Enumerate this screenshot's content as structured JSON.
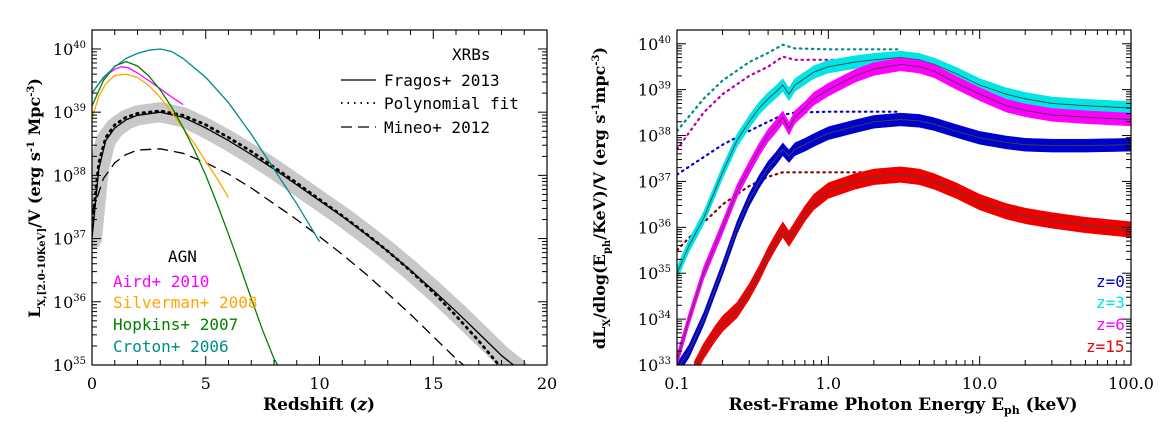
{
  "chart_data": [
    {
      "type": "line",
      "xlabel": "Redshift (z)",
      "ylabel": "L_X,[2.0-10KeV]/V (erg s^-1 Mpc^-3)",
      "xlim": [
        0,
        20
      ],
      "ylim_log10": [
        35,
        40.3
      ],
      "y_scale": "log",
      "x_ticks": [
        "0",
        "5",
        "10",
        "15",
        "20"
      ],
      "y_ticks": [
        "10^35",
        "10^36",
        "10^37",
        "10^38",
        "10^39",
        "10^40"
      ],
      "legend_xrb": {
        "title": "XRBs",
        "entries": [
          "Fragos+ 2013",
          "Polynomial fit",
          "Mineo+ 2012"
        ]
      },
      "legend_agn": {
        "title": "AGN",
        "entries": [
          "Aird+ 2010",
          "Silverman+ 2008",
          "Hopkins+ 2007",
          "Croton+ 2006"
        ]
      },
      "series": [
        {
          "name": "Fragos+ 2013",
          "color": "#000000",
          "style": "solid",
          "band_color": "#c8c8c8",
          "x": [
            0,
            0.3,
            0.6,
            1,
            1.5,
            2,
            3,
            4,
            5,
            6,
            7,
            8,
            9,
            10,
            11,
            12,
            13,
            14,
            15,
            16,
            17,
            18,
            18.7,
            19
          ],
          "log_y": [
            37.0,
            38.1,
            38.55,
            38.75,
            38.88,
            38.95,
            39.0,
            38.92,
            38.75,
            38.55,
            38.33,
            38.1,
            37.85,
            37.6,
            37.35,
            37.08,
            36.8,
            36.5,
            36.18,
            35.85,
            35.5,
            35.15,
            34.95,
            34.8
          ]
        },
        {
          "name": "Polynomial fit",
          "color": "#000000",
          "style": "dotted",
          "x": [
            0,
            0.3,
            0.6,
            1,
            1.5,
            2,
            3,
            4,
            5,
            6,
            7,
            8,
            9,
            10,
            11,
            12,
            13,
            14,
            15,
            16,
            17,
            18
          ],
          "log_y": [
            37.2,
            38.2,
            38.6,
            38.8,
            38.92,
            38.98,
            39.02,
            38.95,
            38.8,
            38.6,
            38.38,
            38.13,
            37.88,
            37.62,
            37.36,
            37.09,
            36.8,
            36.49,
            36.15,
            35.78,
            35.38,
            34.95
          ]
        },
        {
          "name": "Mineo+ 2012",
          "color": "#000000",
          "style": "dashed",
          "x": [
            0,
            0.5,
            1,
            1.5,
            2,
            3,
            4,
            5,
            6,
            7,
            8,
            9,
            10,
            11,
            12,
            13,
            14,
            15,
            16,
            17,
            17.6
          ],
          "log_y": [
            37.4,
            37.95,
            38.2,
            38.33,
            38.4,
            38.42,
            38.35,
            38.2,
            38.02,
            37.8,
            37.55,
            37.3,
            37.03,
            36.75,
            36.45,
            36.13,
            35.8,
            35.45,
            35.1,
            34.8,
            34.7
          ]
        },
        {
          "name": "Aird+ 2010",
          "color": "#ff00ff",
          "style": "solid",
          "x": [
            0,
            0.3,
            0.6,
            1,
            1.3,
            1.6,
            2,
            2.5,
            3,
            3.5,
            4
          ],
          "log_y": [
            39.3,
            39.45,
            39.58,
            39.68,
            39.72,
            39.7,
            39.62,
            39.5,
            39.37,
            39.24,
            39.12
          ]
        },
        {
          "name": "Silverman+ 2008",
          "color": "#ffa500",
          "style": "solid",
          "x": [
            0,
            0.3,
            0.6,
            1,
            1.5,
            2,
            2.5,
            3,
            3.5,
            4,
            4.5,
            5,
            5.5,
            6
          ],
          "log_y": [
            38.9,
            39.25,
            39.45,
            39.58,
            39.6,
            39.55,
            39.42,
            39.23,
            39.0,
            38.75,
            38.5,
            38.22,
            37.95,
            37.65
          ]
        },
        {
          "name": "Hopkins+ 2007",
          "color": "#008000",
          "style": "solid",
          "x": [
            0,
            0.5,
            1,
            1.5,
            2,
            2.5,
            3,
            3.5,
            4,
            4.5,
            5,
            5.5,
            6,
            6.5,
            7,
            7.5,
            8,
            8.5,
            9,
            9.5
          ],
          "log_y": [
            39.1,
            39.5,
            39.73,
            39.8,
            39.73,
            39.57,
            39.35,
            39.08,
            38.76,
            38.4,
            38.0,
            37.55,
            37.07,
            36.57,
            36.05,
            35.55,
            35.1,
            34.78,
            34.6,
            34.5
          ]
        },
        {
          "name": "Croton+ 2006",
          "color": "#008b8b",
          "style": "solid",
          "x": [
            0,
            0.5,
            1,
            1.5,
            2,
            2.5,
            3,
            3.5,
            4,
            5,
            6,
            7,
            8,
            9,
            10
          ],
          "log_y": [
            39.3,
            39.55,
            39.72,
            39.85,
            39.93,
            39.98,
            40.0,
            39.96,
            39.85,
            39.55,
            39.15,
            38.65,
            38.1,
            37.55,
            36.95
          ]
        }
      ]
    },
    {
      "type": "line",
      "xlabel": "Rest-Frame Photon Energy E_ph (keV)",
      "ylabel": "dL_X/dlog(E_ph/KeV)/V (erg s^-1 mpc^-3)",
      "x_scale": "log",
      "xlim": [
        0.1,
        100
      ],
      "ylim_log10": [
        33,
        40.3
      ],
      "y_scale": "log",
      "x_ticks": [
        "0.1",
        "1.0",
        "10.0",
        "100.0"
      ],
      "y_ticks": [
        "10^33",
        "10^34",
        "10^35",
        "10^36",
        "10^37",
        "10^38",
        "10^39",
        "10^40"
      ],
      "legend": [
        "z=0",
        "z=3",
        "z=6",
        "z=15"
      ],
      "series": [
        {
          "name": "z=0",
          "color": "#0000cd",
          "half_width": 0.14,
          "x": [
            0.1,
            0.12,
            0.15,
            0.2,
            0.25,
            0.3,
            0.35,
            0.4,
            0.45,
            0.5,
            0.55,
            0.6,
            0.7,
            0.8,
            1,
            1.5,
            2,
            3,
            4,
            5,
            7,
            10,
            15,
            20,
            30,
            50,
            100
          ],
          "log_y": [
            32.9,
            33.3,
            34.0,
            35.1,
            36.0,
            36.6,
            37.0,
            37.3,
            37.5,
            37.7,
            37.55,
            37.7,
            37.8,
            37.9,
            38.05,
            38.2,
            38.3,
            38.35,
            38.32,
            38.25,
            38.1,
            37.95,
            37.85,
            37.8,
            37.78,
            37.78,
            37.8
          ]
        },
        {
          "name": "z=3",
          "color": "#00e5e5",
          "half_width": 0.14,
          "x": [
            0.1,
            0.12,
            0.15,
            0.2,
            0.25,
            0.3,
            0.35,
            0.4,
            0.45,
            0.5,
            0.55,
            0.6,
            0.7,
            0.8,
            1,
            1.5,
            2,
            3,
            4,
            5,
            7,
            10,
            15,
            20,
            30,
            50,
            100
          ],
          "log_y": [
            35.0,
            35.6,
            36.2,
            37.2,
            37.9,
            38.3,
            38.6,
            38.8,
            38.95,
            39.1,
            38.9,
            39.1,
            39.25,
            39.38,
            39.5,
            39.6,
            39.65,
            39.7,
            39.65,
            39.55,
            39.35,
            39.1,
            38.9,
            38.8,
            38.7,
            38.65,
            38.6
          ]
        },
        {
          "name": "z=6",
          "color": "#ff00ff",
          "half_width": 0.14,
          "x": [
            0.1,
            0.12,
            0.15,
            0.2,
            0.25,
            0.3,
            0.35,
            0.4,
            0.45,
            0.5,
            0.55,
            0.6,
            0.7,
            0.8,
            1,
            1.5,
            2,
            3,
            4,
            5,
            7,
            10,
            15,
            20,
            30,
            50,
            100
          ],
          "log_y": [
            33.1,
            34.0,
            35.0,
            36.0,
            36.8,
            37.3,
            37.7,
            38.0,
            38.2,
            38.4,
            38.15,
            38.4,
            38.6,
            38.8,
            39.0,
            39.3,
            39.45,
            39.55,
            39.5,
            39.4,
            39.15,
            38.9,
            38.65,
            38.55,
            38.45,
            38.4,
            38.35
          ]
        },
        {
          "name": "z=15",
          "color": "#ee0000",
          "half_width": 0.17,
          "x": [
            0.13,
            0.15,
            0.18,
            0.2,
            0.25,
            0.3,
            0.35,
            0.4,
            0.45,
            0.5,
            0.55,
            0.6,
            0.7,
            0.8,
            1,
            1.5,
            2,
            3,
            4,
            5,
            7,
            10,
            15,
            20,
            30,
            50,
            100
          ],
          "log_y": [
            32.9,
            33.3,
            33.7,
            33.9,
            34.2,
            34.6,
            35.0,
            35.4,
            35.7,
            35.95,
            35.75,
            35.95,
            36.3,
            36.55,
            36.8,
            37.0,
            37.1,
            37.15,
            37.1,
            37.0,
            36.8,
            36.55,
            36.35,
            36.25,
            36.15,
            36.05,
            35.95
          ]
        },
        {
          "name": "z=0 dotted",
          "color": "#0000cd",
          "style": "dotted",
          "x": [
            0.1,
            0.2,
            0.3,
            0.4,
            0.5,
            0.6,
            1,
            2,
            3
          ],
          "log_y": [
            37.15,
            37.8,
            38.1,
            38.3,
            38.45,
            38.5,
            38.52,
            38.52,
            38.52
          ]
        },
        {
          "name": "z=3 dotted",
          "color": "#008b8b",
          "style": "dotted",
          "x": [
            0.1,
            0.15,
            0.2,
            0.3,
            0.4,
            0.5,
            0.6,
            1,
            2,
            3
          ],
          "log_y": [
            38.1,
            38.8,
            39.2,
            39.6,
            39.8,
            39.98,
            39.9,
            39.88,
            39.88,
            39.88
          ]
        },
        {
          "name": "z=6 dotted",
          "color": "#b000b0",
          "style": "dotted",
          "x": [
            0.1,
            0.15,
            0.2,
            0.3,
            0.4,
            0.5,
            0.6,
            1,
            2,
            3
          ],
          "log_y": [
            37.7,
            38.5,
            38.9,
            39.3,
            39.5,
            39.72,
            39.65,
            39.65,
            39.65,
            39.65
          ]
        },
        {
          "name": "z=15 dotted",
          "color": "#8b0000",
          "style": "dotted",
          "x": [
            0.1,
            0.15,
            0.2,
            0.3,
            0.4,
            0.5,
            0.6,
            1,
            2,
            3
          ],
          "log_y": [
            35.5,
            36.1,
            36.5,
            36.9,
            37.1,
            37.2,
            37.2,
            37.2,
            37.2,
            37.2
          ]
        }
      ]
    }
  ]
}
